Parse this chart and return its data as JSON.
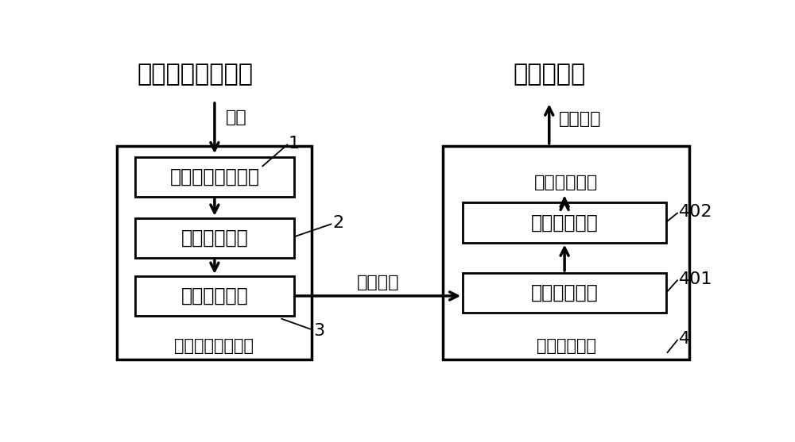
{
  "bg_color": "#ffffff",
  "heading_left": "行人出现状态检测",
  "heading_right": "切换信号灯",
  "detect_label": "检测",
  "signal_output_label": "信号输出",
  "signal_transmission_label": "信号传输",
  "signal_duration_label": "信号时长设定",
  "left_box_label": "行人等候区域检测",
  "right_box_label": "信号控制装置",
  "box1_text": "二维激光雷达设备",
  "box2_text": "数据处理模块",
  "box3_text": "数据发送模块",
  "box4_text": "数据接收模块",
  "box5_text": "控制处理模块",
  "label1": "1",
  "label2": "2",
  "label3": "3",
  "label401": "401",
  "label402": "402",
  "label4": "4",
  "line_color": "#000000",
  "box_color": "#ffffff",
  "box_edge_color": "#000000",
  "text_color": "#000000",
  "fontsize_heading": 20,
  "fontsize_body": 16,
  "fontsize_number": 15
}
